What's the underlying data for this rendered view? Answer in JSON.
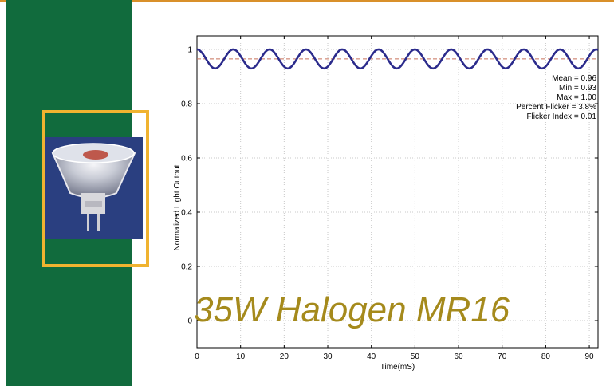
{
  "slide": {
    "accent_color": "#d9902a",
    "panel_color": "#116b3d",
    "frame_color": "#f0b330"
  },
  "image": {
    "icon": "halogen-lamp-photo"
  },
  "chart_data": {
    "type": "line",
    "title": "",
    "xlabel": "Time(mS)",
    "ylabel": "Normalized Light Outout",
    "xlim": [
      0,
      92
    ],
    "ylim": [
      -0.1,
      1.05
    ],
    "xticks": [
      0,
      10,
      20,
      30,
      40,
      50,
      60,
      70,
      80,
      90
    ],
    "yticks": [
      0,
      0.2,
      0.4,
      0.6,
      0.8,
      1
    ],
    "ytick_labels": [
      "0",
      "0.2",
      "0.4",
      "0.6",
      "0.8",
      "1"
    ],
    "grid": true,
    "series": [
      {
        "color": "#2b2b8c",
        "waveform": "sinusoid",
        "period_ms": 8.33,
        "min": 0.93,
        "max": 1.0
      }
    ],
    "mean_line": {
      "value": 0.965,
      "color": "#c8705a",
      "style": "dashed"
    },
    "annotations": [
      "Mean = 0.96",
      "Min = 0.93",
      "Max = 1.00",
      "Percent Flicker = 3.8%",
      "Flicker Index = 0.01"
    ],
    "overlay_label": "35W Halogen MR16",
    "overlay_color": "#a58a1c"
  }
}
